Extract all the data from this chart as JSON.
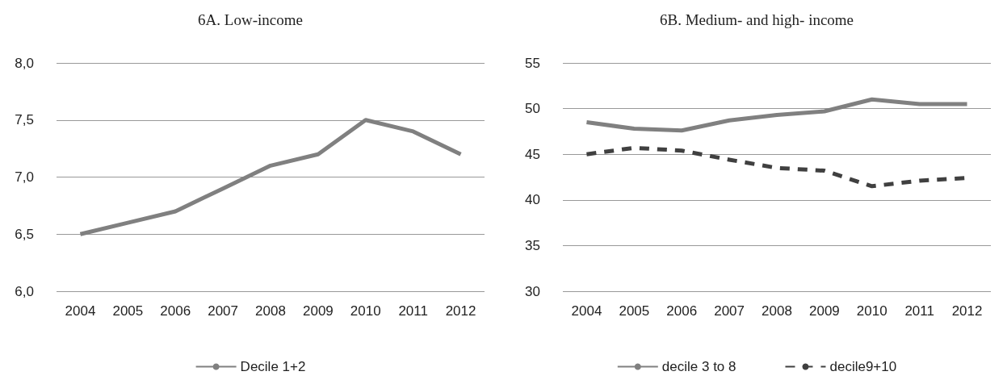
{
  "chart_data": [
    {
      "type": "line",
      "title": "6A. Low-income",
      "categories": [
        "2004",
        "2005",
        "2006",
        "2007",
        "2008",
        "2009",
        "2010",
        "2011",
        "2012"
      ],
      "series": [
        {
          "name": "Decile 1+2",
          "color": "#808080",
          "values": [
            6.5,
            6.6,
            6.7,
            6.9,
            7.1,
            7.2,
            7.5,
            7.4,
            7.2
          ]
        }
      ],
      "ylim": [
        6.0,
        8.0
      ],
      "yticks": [
        {
          "value": 6.0,
          "label": "6,0"
        },
        {
          "value": 6.5,
          "label": "6,5"
        },
        {
          "value": 7.0,
          "label": "7,0"
        },
        {
          "value": 7.5,
          "label": "7,5"
        },
        {
          "value": 8.0,
          "label": "8,0"
        }
      ],
      "grid": "y",
      "legend": "bottom",
      "marker": "none"
    },
    {
      "type": "line",
      "title": "6B. Medium- and high- income",
      "categories": [
        "2004",
        "2005",
        "2006",
        "2007",
        "2008",
        "2009",
        "2010",
        "2011",
        "2012"
      ],
      "series": [
        {
          "name": "decile 3 to 8",
          "color": "#808080",
          "values": [
            48.5,
            47.8,
            47.6,
            48.7,
            49.3,
            49.7,
            51.0,
            50.5,
            50.5
          ]
        },
        {
          "name": "decile9+10",
          "color": "#404040",
          "line_style": "dashed",
          "values": [
            45.0,
            45.7,
            45.4,
            44.4,
            43.5,
            43.2,
            41.5,
            42.1,
            42.4
          ]
        }
      ],
      "ylim": [
        30,
        55
      ],
      "yticks": [
        30,
        35,
        40,
        45,
        50,
        55
      ],
      "grid": "y",
      "legend": "bottom",
      "marker": "none"
    }
  ]
}
